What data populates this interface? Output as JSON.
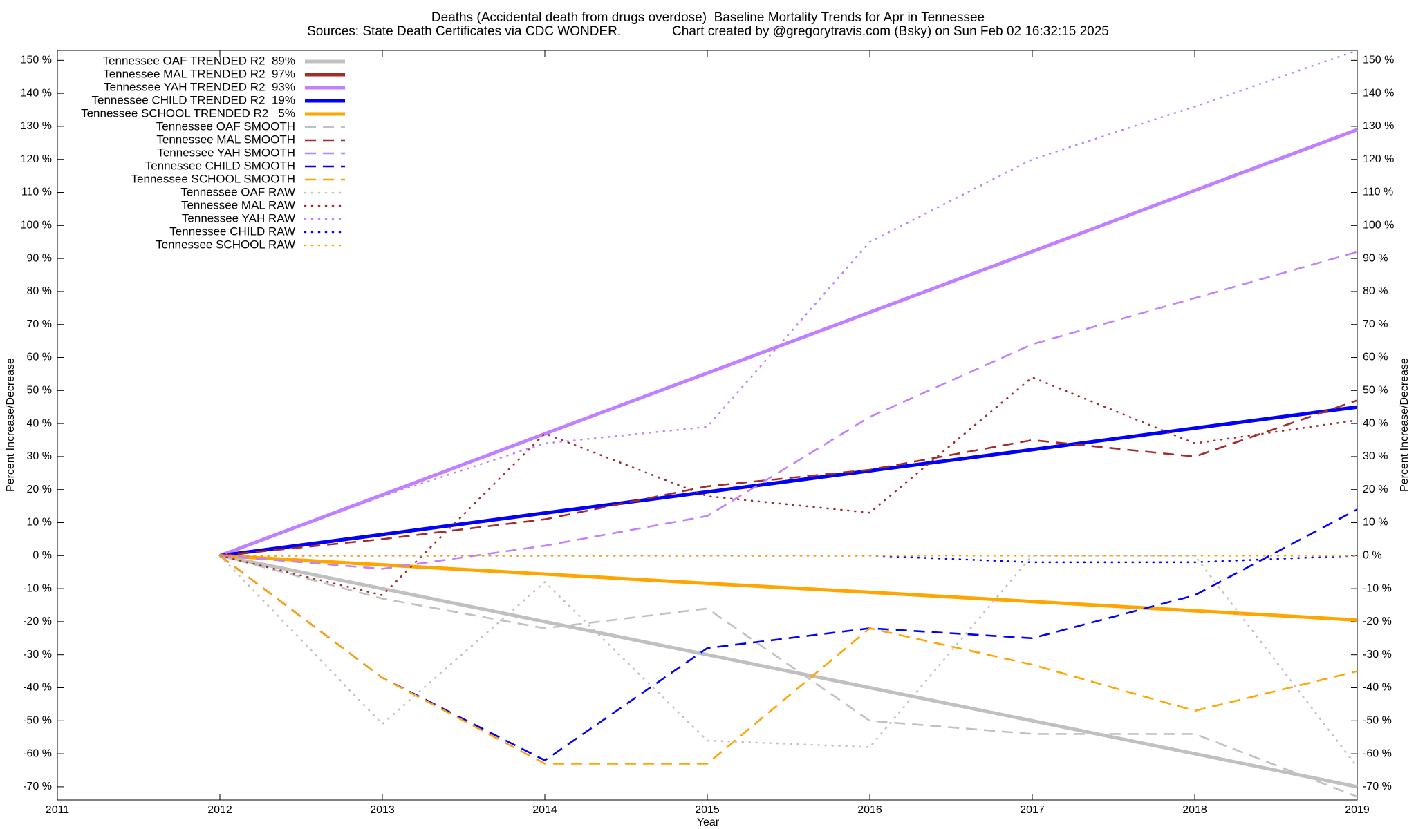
{
  "chart_data": {
    "type": "line",
    "title": "Deaths (Accidental death from drugs overdose)  Baseline Mortality Trends for Apr in Tennessee",
    "subtitle": "Sources: State Death Certificates via CDC WONDER.              Chart created by @gregorytravis.com (Bsky) on Sun Feb 02 16:32:15 2025",
    "x_label": "Year",
    "y_label": "Percent Increase/Decrease",
    "y2_label": "Percent Increase/Decrease",
    "x": [
      2012,
      2013,
      2014,
      2015,
      2016,
      2017,
      2018,
      2019
    ],
    "xlim": [
      2011,
      2019
    ],
    "xticks": [
      2011,
      2012,
      2013,
      2014,
      2015,
      2016,
      2017,
      2018,
      2019
    ],
    "ylim": [
      -74,
      153
    ],
    "yticks": [
      {
        "value": -70,
        "label": "-70 %"
      },
      {
        "value": -60,
        "label": "-60 %"
      },
      {
        "value": -50,
        "label": "-50 %"
      },
      {
        "value": -40,
        "label": "-40 %"
      },
      {
        "value": -30,
        "label": "-30 %"
      },
      {
        "value": -20,
        "label": "-20 %"
      },
      {
        "value": -10,
        "label": "-10 %"
      },
      {
        "value": 0,
        "label": "0 %"
      },
      {
        "value": 10,
        "label": "10 %"
      },
      {
        "value": 20,
        "label": "20 %"
      },
      {
        "value": 30,
        "label": "30 %"
      },
      {
        "value": 40,
        "label": "40 %"
      },
      {
        "value": 50,
        "label": "50 %"
      },
      {
        "value": 60,
        "label": "60 %"
      },
      {
        "value": 70,
        "label": "70 %"
      },
      {
        "value": 80,
        "label": "80 %"
      },
      {
        "value": 90,
        "label": "90 %"
      },
      {
        "value": 100,
        "label": "100 %"
      },
      {
        "value": 110,
        "label": "110 %"
      },
      {
        "value": 120,
        "label": "120 %"
      },
      {
        "value": 130,
        "label": "130 %"
      },
      {
        "value": 140,
        "label": "140 %"
      },
      {
        "value": 150,
        "label": "150 %"
      }
    ],
    "legend_position": "top-left",
    "series": [
      {
        "name": "Tennessee OAF TRENDED R2  89%",
        "color": "#c0c0c0",
        "line_style": "solid",
        "values": [
          0,
          -10,
          -20,
          -30,
          -40,
          -50,
          -60,
          -70
        ]
      },
      {
        "name": "Tennessee MAL TRENDED R2  97%",
        "color": "#a52a2a",
        "line_style": "solid",
        "values": [
          0,
          6.4,
          12.9,
          19.3,
          25.7,
          32.1,
          38.6,
          45
        ]
      },
      {
        "name": "Tennessee YAH TRENDED R2  93%",
        "color": "#c080ff",
        "line_style": "solid",
        "values": [
          0,
          18.4,
          36.9,
          55.3,
          73.7,
          92.1,
          110.6,
          129
        ]
      },
      {
        "name": "Tennessee CHILD TRENDED R2  19%",
        "color": "#0000ff",
        "line_style": "solid",
        "values": [
          0,
          6.4,
          12.9,
          19.3,
          25.7,
          32.1,
          38.6,
          45
        ]
      },
      {
        "name": "Tennessee SCHOOL TRENDED R2   5%",
        "color": "#ffa500",
        "line_style": "solid",
        "values": [
          0,
          -2.8,
          -5.6,
          -8.4,
          -11.1,
          -13.9,
          -16.7,
          -19.5
        ]
      },
      {
        "name": "Tennessee OAF SMOOTH",
        "color": "#c0c0c0",
        "line_style": "dashed",
        "values": [
          0,
          -13,
          -22,
          -16,
          -50,
          -54,
          -54,
          -73
        ]
      },
      {
        "name": "Tennessee MAL SMOOTH",
        "color": "#a52a2a",
        "line_style": "dashed",
        "values": [
          0,
          5,
          11,
          21,
          26,
          35,
          30,
          47
        ]
      },
      {
        "name": "Tennessee YAH SMOOTH",
        "color": "#c080ff",
        "line_style": "dashed",
        "values": [
          0,
          -4,
          3,
          12,
          42,
          64,
          78,
          92
        ]
      },
      {
        "name": "Tennessee CHILD SMOOTH",
        "color": "#0000ff",
        "line_style": "dashed",
        "values": [
          0,
          -37,
          -62,
          -28,
          -22,
          -25,
          -12,
          14
        ]
      },
      {
        "name": "Tennessee SCHOOL SMOOTH",
        "color": "#ffa500",
        "line_style": "dashed",
        "values": [
          0,
          -37,
          -63,
          -63,
          -22,
          -33,
          -47,
          -35
        ]
      },
      {
        "name": "Tennessee OAF RAW",
        "color": "#c0c0c0",
        "line_style": "dotted",
        "values": [
          0,
          -51,
          -8,
          -56,
          -58,
          0,
          0,
          -64
        ]
      },
      {
        "name": "Tennessee MAL RAW",
        "color": "#a52a2a",
        "line_style": "dotted",
        "values": [
          0,
          -12,
          37,
          18,
          13,
          54,
          34,
          41
        ]
      },
      {
        "name": "Tennessee YAH RAW",
        "color": "#c080ff",
        "line_style": "dotted",
        "values": [
          0,
          18,
          34,
          39,
          95,
          120,
          136,
          153
        ]
      },
      {
        "name": "Tennessee CHILD RAW",
        "color": "#0000ff",
        "line_style": "dotted",
        "values": [
          0,
          0,
          0,
          0,
          0,
          -2,
          -2,
          0
        ]
      },
      {
        "name": "Tennessee SCHOOL RAW",
        "color": "#ffa500",
        "line_style": "dotted",
        "values": [
          0,
          0,
          0,
          0,
          0,
          0,
          0,
          0
        ]
      }
    ]
  }
}
